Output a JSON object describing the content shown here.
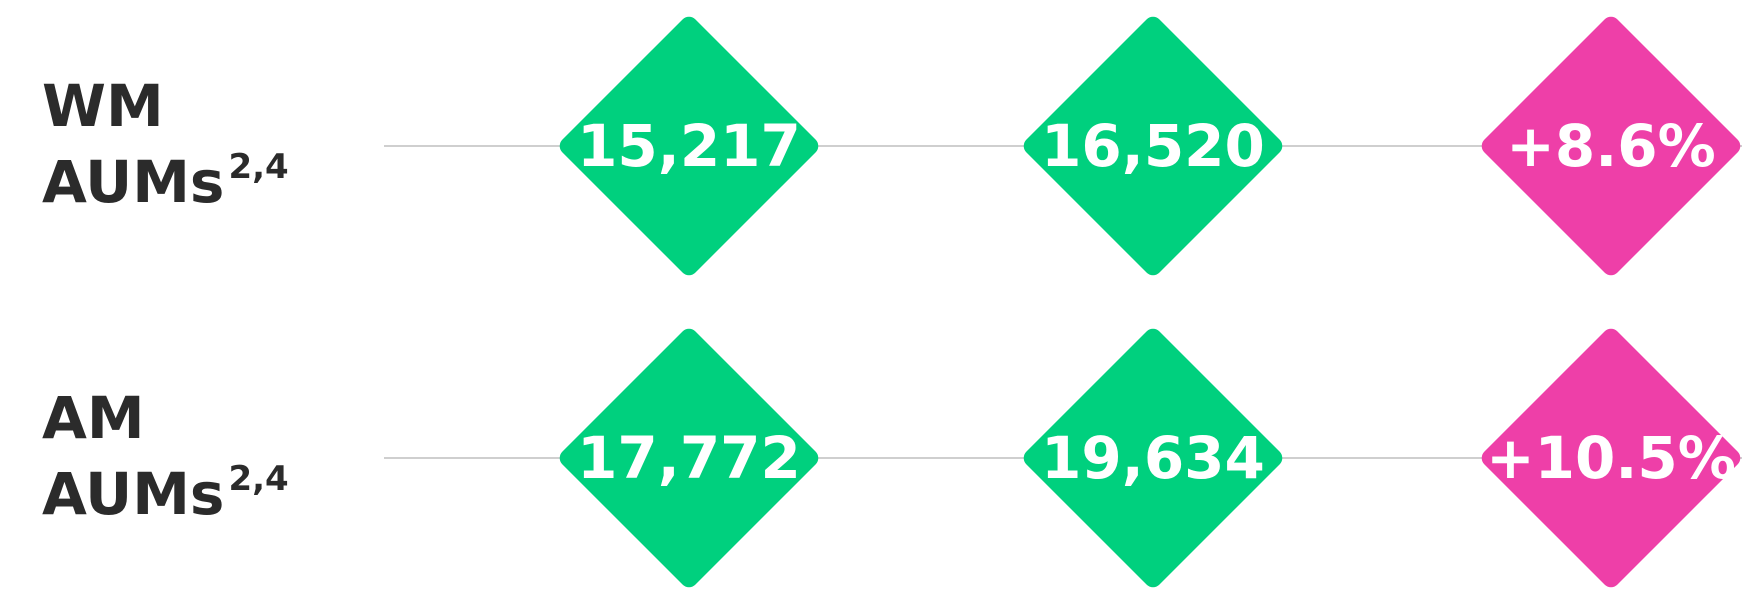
{
  "rows": [
    {
      "label_lines": [
        "WM",
        "AUMs"
      ],
      "superscript": "2,4",
      "values": [
        "15,217",
        "16,520",
        "+8.6%"
      ]
    },
    {
      "label_lines": [
        "AM",
        "AUMs"
      ],
      "superscript": "2,4",
      "values": [
        "17,772",
        "19,634",
        "+10.5%"
      ]
    }
  ]
}
